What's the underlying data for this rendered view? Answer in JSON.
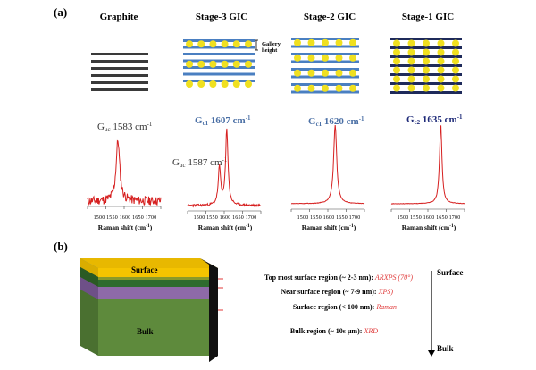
{
  "panel_a": {
    "label": "(a)",
    "columns": [
      {
        "title": "Graphite",
        "peak_main": "G",
        "peak_sub": "uc",
        "peak_value": "1583 cm",
        "peak_sup": "-1",
        "peak_color": "#333333"
      },
      {
        "title": "Stage-3 GIC",
        "peak_main": "G",
        "peak_sub": "c1",
        "peak_value": "1607 cm",
        "peak_sup": "-1",
        "peak_color": "#4a6fa5",
        "secondary_peak_main": "G",
        "secondary_peak_sub": "uc",
        "secondary_peak_value": "1587 cm",
        "secondary_peak_sup": "-1"
      },
      {
        "title": "Stage-2 GIC",
        "peak_main": "G",
        "peak_sub": "c1",
        "peak_value": "1620 cm",
        "peak_sup": "-1",
        "peak_color": "#4a6fa5"
      },
      {
        "title": "Stage-1 GIC",
        "peak_main": "G",
        "peak_sub": "c2",
        "peak_value": "1635 cm",
        "peak_sup": "-1",
        "peak_color": "#1e2a78"
      }
    ],
    "gallery_label_line1": "Gallery",
    "gallery_label_line2": "height",
    "x_ticks": "1500 1550 1600 1650 1700",
    "x_label": "Raman shift (cm",
    "x_label_sup": "-1",
    "x_label_end": ")",
    "colors": {
      "graphite_layer": "#3a3a3a",
      "gic_layer": "#4a7fc1",
      "stage1_layer": "#1e2a5a",
      "intercalant": "#f0e020",
      "spectrum": "#d62020"
    }
  },
  "panel_b": {
    "label": "(b)",
    "block_labels": {
      "surface": "Surface",
      "bulk": "Bulk"
    },
    "regions": [
      {
        "text": "Top most surface region (~ 2-3 nm): ",
        "tech": "ARXPS (70°)"
      },
      {
        "text": "Near surface region (~ 7-9 nm): ",
        "tech": "XPS)"
      },
      {
        "text": "Surface region (< 100 nm): ",
        "tech": "Raman"
      },
      {
        "text": "Bulk region (~ 10s μm): ",
        "tech": "XRD"
      }
    ],
    "axis_top": "Surface",
    "axis_bottom": "Bulk",
    "colors": {
      "surface": "#f5c400",
      "dark_green": "#2e6b2e",
      "purple": "#8e6aa8",
      "bulk": "#5e8a3c",
      "side": "#111111"
    }
  }
}
